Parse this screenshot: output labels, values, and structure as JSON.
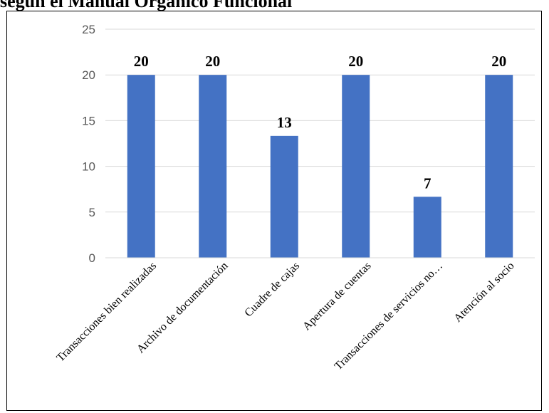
{
  "page": {
    "heading": "según el Manual Orgánico Funcional"
  },
  "chart_data": {
    "type": "bar",
    "title": "",
    "xlabel": "",
    "ylabel": "",
    "ylim": [
      0,
      25
    ],
    "yticks": [
      0,
      5,
      10,
      15,
      20,
      25
    ],
    "grid": true,
    "legend": "none",
    "categories": [
      "Transacciones bien realizadas",
      "Archivo de documentación",
      "Cuadre de cajas",
      "Apertura de cuentas",
      "Transacciones de servicios no…",
      "Atención al socio"
    ],
    "values": [
      20,
      20,
      13.33,
      20,
      6.67,
      20
    ],
    "data_labels": [
      "20",
      "20",
      "13",
      "20",
      "7",
      "20"
    ],
    "colors": {
      "bar": "#4472C4",
      "grid": "#D9D9D9",
      "axis_text": "#595959",
      "label_text": "#000000"
    }
  }
}
